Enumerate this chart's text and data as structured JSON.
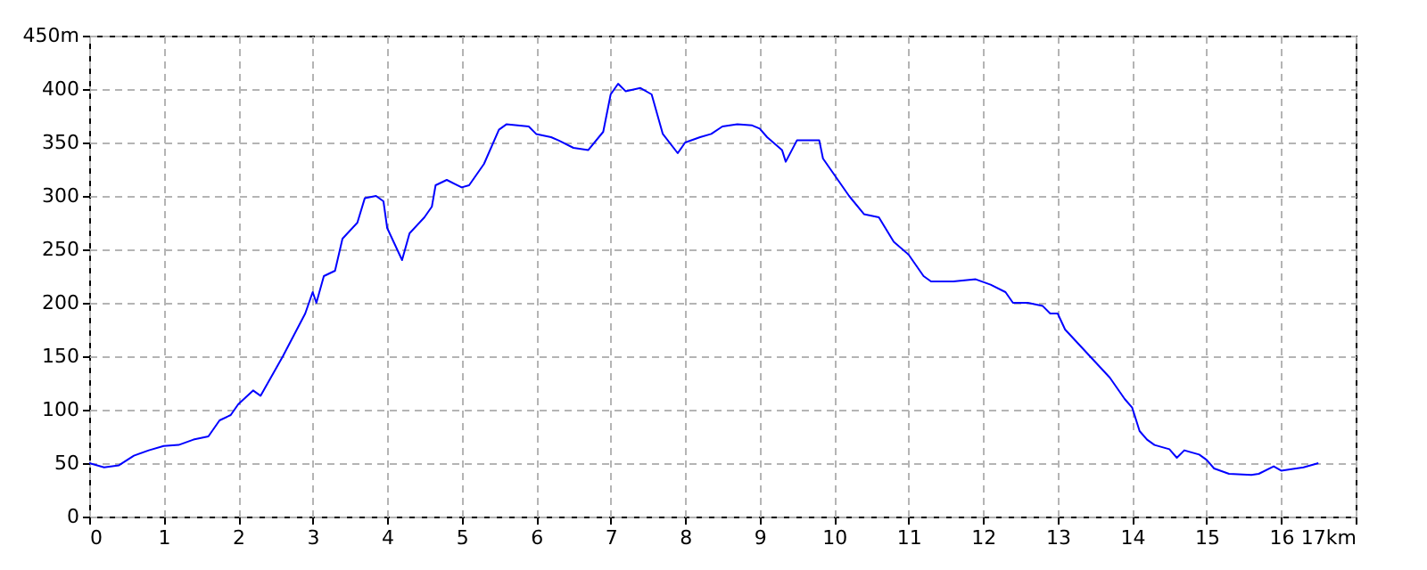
{
  "chart_data": {
    "type": "line",
    "x": [
      0,
      0.2,
      0.4,
      0.6,
      0.8,
      1.0,
      1.2,
      1.4,
      1.6,
      1.75,
      1.9,
      2.0,
      2.2,
      2.3,
      2.6,
      2.9,
      3.0,
      3.05,
      3.15,
      3.3,
      3.4,
      3.6,
      3.7,
      3.85,
      3.95,
      4.0,
      4.1,
      4.2,
      4.3,
      4.5,
      4.6,
      4.65,
      4.8,
      5.0,
      5.1,
      5.3,
      5.5,
      5.6,
      5.9,
      6.0,
      6.2,
      6.3,
      6.5,
      6.7,
      6.9,
      7.0,
      7.1,
      7.2,
      7.4,
      7.55,
      7.7,
      7.9,
      8.0,
      8.2,
      8.35,
      8.5,
      8.7,
      8.9,
      9.0,
      9.1,
      9.3,
      9.35,
      9.5,
      9.8,
      9.85,
      10.0,
      10.2,
      10.4,
      10.6,
      10.8,
      11.0,
      11.2,
      11.3,
      11.6,
      11.9,
      12.1,
      12.3,
      12.4,
      12.6,
      12.8,
      12.9,
      13.0,
      13.1,
      13.3,
      13.5,
      13.7,
      13.9,
      14.0,
      14.1,
      14.2,
      14.3,
      14.5,
      14.6,
      14.7,
      14.9,
      15.0,
      15.1,
      15.3,
      15.6,
      15.7,
      15.9,
      16.0,
      16.3,
      16.5
    ],
    "series": [
      {
        "color": "#0000ff",
        "values": [
          50,
          46,
          48,
          57,
          62,
          66,
          67,
          72,
          75,
          90,
          95,
          105,
          118,
          113,
          150,
          190,
          210,
          200,
          225,
          230,
          260,
          275,
          298,
          300,
          295,
          270,
          255,
          240,
          265,
          280,
          290,
          310,
          315,
          308,
          310,
          330,
          362,
          367,
          365,
          358,
          355,
          352,
          345,
          343,
          360,
          395,
          405,
          398,
          401,
          395,
          358,
          340,
          350,
          355,
          358,
          365,
          367,
          366,
          363,
          355,
          343,
          332,
          352,
          352,
          335,
          320,
          300,
          283,
          280,
          257,
          245,
          225,
          220,
          220,
          222,
          217,
          210,
          200,
          200,
          197,
          190,
          190,
          175,
          160,
          145,
          130,
          110,
          102,
          80,
          72,
          67,
          63,
          55,
          62,
          58,
          53,
          45,
          40,
          39,
          40,
          47,
          43,
          46,
          50
        ]
      }
    ],
    "xlim": [
      0,
      17
    ],
    "xticks": [
      0,
      1,
      2,
      3,
      4,
      5,
      6,
      7,
      8,
      9,
      10,
      11,
      12,
      13,
      14,
      15,
      16,
      {
        "value": 17,
        "label": "17km"
      }
    ],
    "ylim": [
      0,
      450
    ],
    "yticks": [
      0,
      50,
      100,
      150,
      200,
      250,
      300,
      350,
      400,
      {
        "value": 450,
        "label": "450m"
      }
    ],
    "grid": true,
    "line_style": "solid",
    "marker": "none"
  }
}
